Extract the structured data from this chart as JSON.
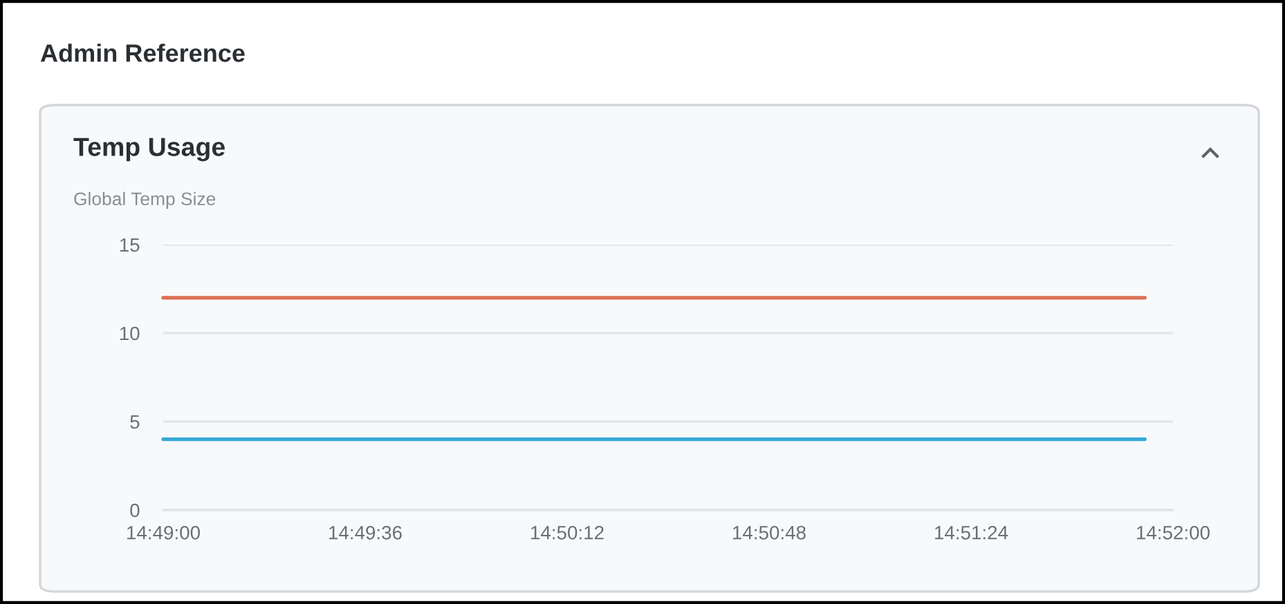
{
  "chart_data": {
    "type": "line",
    "title": "Admin Reference",
    "subtitle": "Temp Usage",
    "ylabel": "Global Temp Size",
    "x": [
      14.81667,
      14.86528
    ],
    "series": [
      {
        "color": "#dc6e52",
        "values": [
          12,
          12
        ]
      },
      {
        "color": "#36a9d9",
        "values": [
          4,
          4
        ]
      }
    ],
    "xlim": [
      14.81667,
      14.86667
    ],
    "xticks": [
      {
        "value": 14.81667,
        "label": "14:49:00"
      },
      {
        "value": 14.82667,
        "label": "14:49:36"
      },
      {
        "value": 14.83667,
        "label": "14:50:12"
      },
      {
        "value": 14.84667,
        "label": "14:50:48"
      },
      {
        "value": 14.85667,
        "label": "14:51:24"
      },
      {
        "value": 14.86667,
        "label": "14:52:00"
      }
    ],
    "ylim": [
      0,
      15
    ],
    "yticks": [
      0,
      5,
      10,
      15
    ],
    "grid": "y",
    "line_style": "solid"
  }
}
